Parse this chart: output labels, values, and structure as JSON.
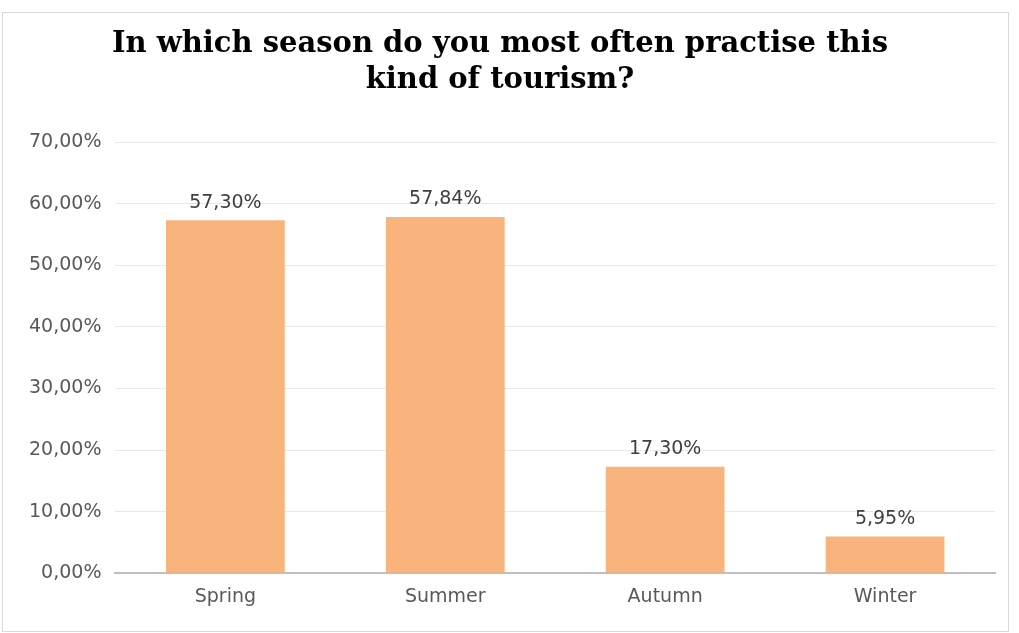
{
  "chart_data": {
    "type": "bar",
    "title": "In which season do you most often practise this kind of tourism?",
    "categories": [
      "Spring",
      "Summer",
      "Autumn",
      "Winter"
    ],
    "values": [
      57.3,
      57.84,
      17.3,
      5.95
    ],
    "value_labels": [
      "57,30%",
      "57,84%",
      "17,30%",
      "5,95%"
    ],
    "color": "#f8b47c",
    "ylim": [
      0,
      70
    ],
    "yticks": [
      {
        "value": 0,
        "label": "0,00%"
      },
      {
        "value": 10,
        "label": "10,00%"
      },
      {
        "value": 20,
        "label": "20,00%"
      },
      {
        "value": 30,
        "label": "30,00%"
      },
      {
        "value": 40,
        "label": "40,00%"
      },
      {
        "value": 50,
        "label": "50,00%"
      },
      {
        "value": 60,
        "label": "60,00%"
      },
      {
        "value": 70,
        "label": "70,00%"
      }
    ],
    "grid": "y",
    "legend": false
  }
}
